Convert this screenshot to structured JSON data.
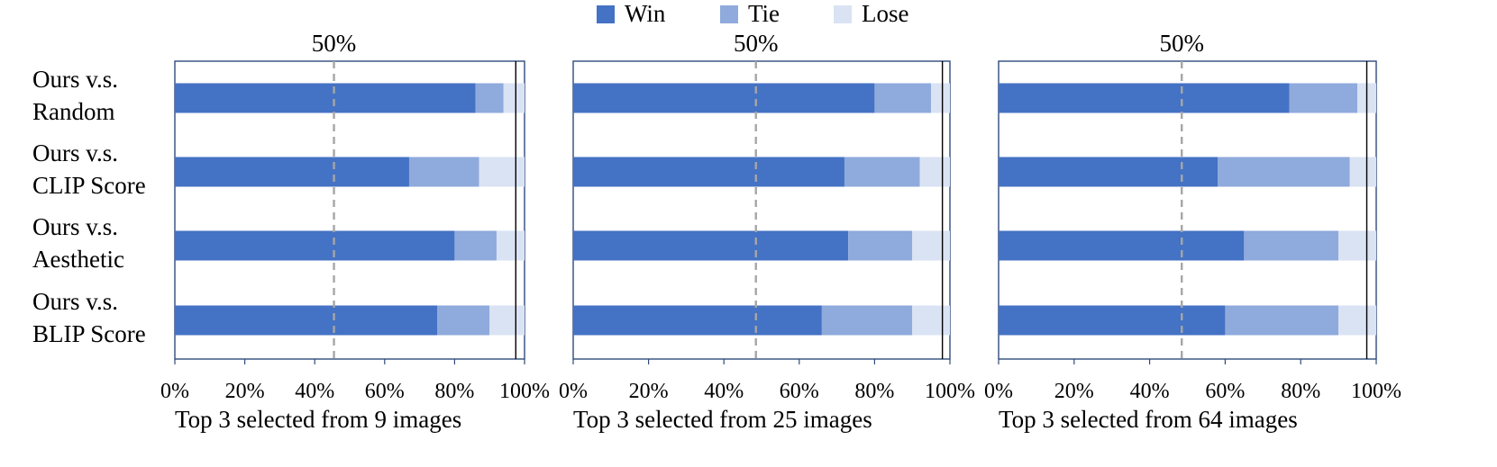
{
  "colors": {
    "win": "#4472c4",
    "tie": "#8faadc",
    "lose": "#dae3f3",
    "frame": "#2f4b7c",
    "dashed": "#a6a6a6"
  },
  "legend": [
    {
      "label": "Win",
      "color": "#4472c4"
    },
    {
      "label": "Tie",
      "color": "#8faadc"
    },
    {
      "label": "Lose",
      "color": "#dae3f3"
    }
  ],
  "row_labels": [
    [
      "Ours v.s.",
      "Random"
    ],
    [
      "Ours v.s.",
      "CLIP Score"
    ],
    [
      "Ours v.s.",
      "Aesthetic"
    ],
    [
      "Ours v.s.",
      "BLIP Score"
    ]
  ],
  "chart_data": [
    {
      "type": "bar",
      "orientation": "horizontal-stacked",
      "xlabel": "Top 3 selected from 9 images",
      "xlim": [
        0,
        100
      ],
      "xticks": [
        "0%",
        "20%",
        "40%",
        "60%",
        "80%",
        "100%"
      ],
      "reference_label": "50%",
      "reference_value": 45.5,
      "end_marker_value": 97.5,
      "categories": [
        "Ours v.s. Random",
        "Ours v.s. CLIP Score",
        "Ours v.s. Aesthetic",
        "Ours v.s. BLIP Score"
      ],
      "series": [
        {
          "name": "Win",
          "values": [
            86,
            67,
            80,
            75
          ]
        },
        {
          "name": "Tie",
          "values": [
            8,
            20,
            12,
            15
          ]
        },
        {
          "name": "Lose",
          "values": [
            6,
            13,
            8,
            10
          ]
        }
      ]
    },
    {
      "type": "bar",
      "orientation": "horizontal-stacked",
      "xlabel": "Top 3 selected from 25 images",
      "xlim": [
        0,
        100
      ],
      "xticks": [
        "0%",
        "20%",
        "40%",
        "60%",
        "80%",
        "100%"
      ],
      "reference_label": "50%",
      "reference_value": 48.5,
      "end_marker_value": 98,
      "categories": [
        "Ours v.s. Random",
        "Ours v.s. CLIP Score",
        "Ours v.s. Aesthetic",
        "Ours v.s. BLIP Score"
      ],
      "series": [
        {
          "name": "Win",
          "values": [
            80,
            72,
            73,
            66
          ]
        },
        {
          "name": "Tie",
          "values": [
            15,
            20,
            17,
            24
          ]
        },
        {
          "name": "Lose",
          "values": [
            5,
            8,
            10,
            10
          ]
        }
      ]
    },
    {
      "type": "bar",
      "orientation": "horizontal-stacked",
      "xlabel": "Top 3 selected from 64 images",
      "xlim": [
        0,
        100
      ],
      "xticks": [
        "0%",
        "20%",
        "40%",
        "60%",
        "80%",
        "100%"
      ],
      "reference_label": "50%",
      "reference_value": 48.5,
      "end_marker_value": 97.5,
      "categories": [
        "Ours v.s. Random",
        "Ours v.s. CLIP Score",
        "Ours v.s. Aesthetic",
        "Ours v.s. BLIP Score"
      ],
      "series": [
        {
          "name": "Win",
          "values": [
            77,
            58,
            65,
            60
          ]
        },
        {
          "name": "Tie",
          "values": [
            18,
            35,
            25,
            30
          ]
        },
        {
          "name": "Lose",
          "values": [
            5,
            7,
            10,
            10
          ]
        }
      ]
    }
  ]
}
